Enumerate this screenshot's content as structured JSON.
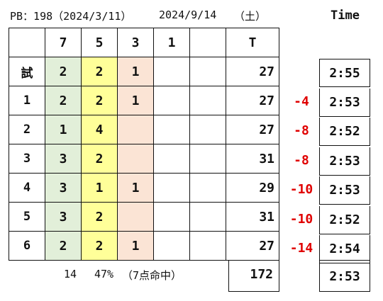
{
  "header": {
    "pb": "PB：198（2024/3/11）",
    "date": "2024/9/14",
    "weekday": "（土）",
    "time_label": "Time"
  },
  "columns": [
    "7",
    "5",
    "3",
    "1",
    "",
    "T"
  ],
  "rows": [
    {
      "label": "試",
      "c7": "2",
      "c5": "2",
      "c3": "1",
      "c1": "",
      "c0": "",
      "total": "27",
      "diff": "",
      "time": "2:55"
    },
    {
      "label": "1",
      "c7": "2",
      "c5": "2",
      "c3": "1",
      "c1": "",
      "c0": "",
      "total": "27",
      "diff": "-4",
      "time": "2:53"
    },
    {
      "label": "2",
      "c7": "1",
      "c5": "4",
      "c3": "",
      "c1": "",
      "c0": "",
      "total": "27",
      "diff": "-8",
      "time": "2:52"
    },
    {
      "label": "3",
      "c7": "3",
      "c5": "2",
      "c3": "",
      "c1": "",
      "c0": "",
      "total": "31",
      "diff": "-8",
      "time": "2:53"
    },
    {
      "label": "4",
      "c7": "3",
      "c5": "1",
      "c3": "1",
      "c1": "",
      "c0": "",
      "total": "29",
      "diff": "-10",
      "time": "2:53"
    },
    {
      "label": "5",
      "c7": "3",
      "c5": "2",
      "c3": "",
      "c1": "",
      "c0": "",
      "total": "31",
      "diff": "-10",
      "time": "2:52"
    },
    {
      "label": "6",
      "c7": "2",
      "c5": "2",
      "c3": "1",
      "c1": "",
      "c0": "",
      "total": "27",
      "diff": "-14",
      "time": "2:54"
    }
  ],
  "footer": {
    "count7": "14",
    "percent": "47%",
    "hits": "（7点命中）",
    "total": "172",
    "avg_time": "2:53"
  },
  "colors": {
    "col7": "#e2efd9",
    "col5": "#ffff99",
    "col3": "#fbe4d5",
    "diff": "#e00000"
  }
}
